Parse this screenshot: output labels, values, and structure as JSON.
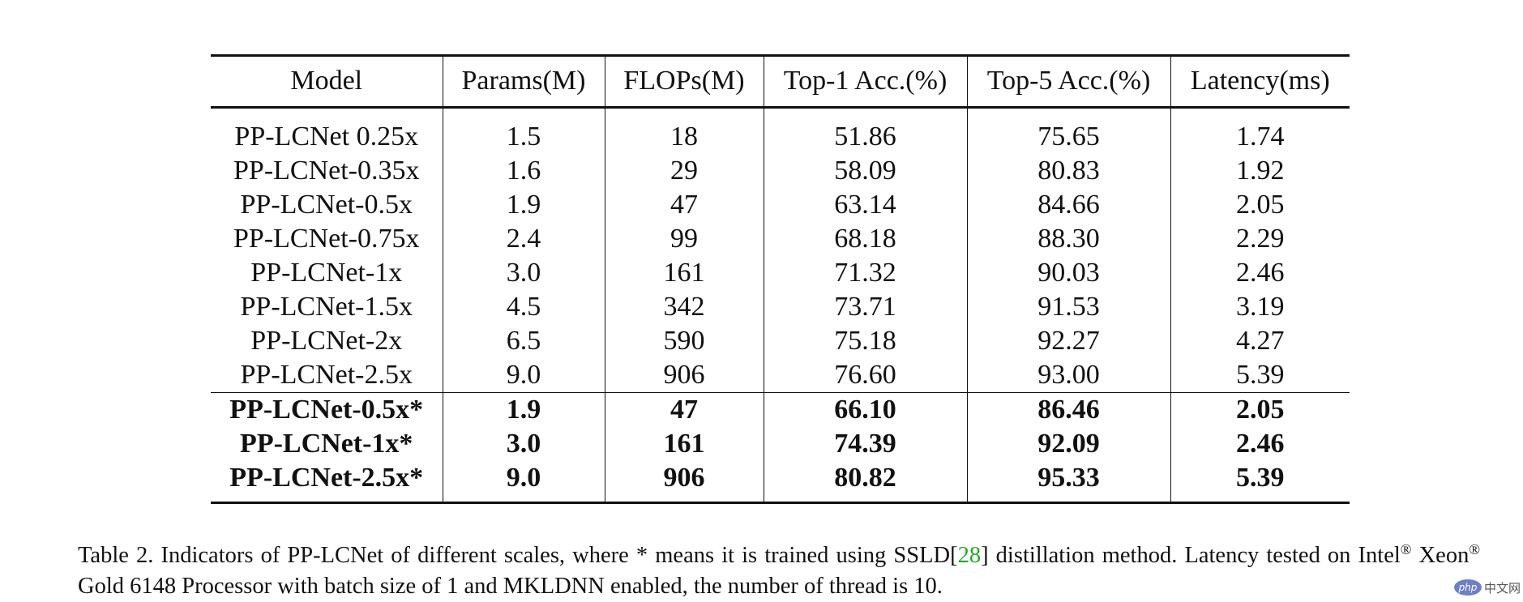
{
  "table": {
    "headers": [
      "Model",
      "Params(M)",
      "FLOPs(M)",
      "Top-1 Acc.(%)",
      "Top-5 Acc.(%)",
      "Latency(ms)"
    ],
    "rows": [
      [
        "PP-LCNet 0.25x",
        "1.5",
        "18",
        "51.86",
        "75.65",
        "1.74"
      ],
      [
        "PP-LCNet-0.35x",
        "1.6",
        "29",
        "58.09",
        "80.83",
        "1.92"
      ],
      [
        "PP-LCNet-0.5x",
        "1.9",
        "47",
        "63.14",
        "84.66",
        "2.05"
      ],
      [
        "PP-LCNet-0.75x",
        "2.4",
        "99",
        "68.18",
        "88.30",
        "2.29"
      ],
      [
        "PP-LCNet-1x",
        "3.0",
        "161",
        "71.32",
        "90.03",
        "2.46"
      ],
      [
        "PP-LCNet-1.5x",
        "4.5",
        "342",
        "73.71",
        "91.53",
        "3.19"
      ],
      [
        "PP-LCNet-2x",
        "6.5",
        "590",
        "75.18",
        "92.27",
        "4.27"
      ],
      [
        "PP-LCNet-2.5x",
        "9.0",
        "906",
        "76.60",
        "93.00",
        "5.39"
      ]
    ],
    "distilled_rows": [
      [
        "PP-LCNet-0.5x*",
        "1.9",
        "47",
        "66.10",
        "86.46",
        "2.05"
      ],
      [
        "PP-LCNet-1x*",
        "3.0",
        "161",
        "74.39",
        "92.09",
        "2.46"
      ],
      [
        "PP-LCNet-2.5x*",
        "9.0",
        "906",
        "80.82",
        "95.33",
        "5.39"
      ]
    ]
  },
  "caption": {
    "part1": "Table 2. Indicators of PP-LCNet of different scales, where * means it is trained using SSLD[",
    "ref": "28",
    "part2": "] distillation method.  Latency tested on Intel",
    "reg1": "®",
    "part3": " Xeon",
    "reg2": "®",
    "part4": " Gold 6148 Processor with batch size of 1 and MKLDNN enabled, the number of thread is 10."
  },
  "watermark": {
    "logo_text": "php",
    "site_text": "中文网"
  },
  "colors": {
    "text": "#111111",
    "ref_link": "#22aa22",
    "watermark_logo": "#6f7fc6"
  }
}
